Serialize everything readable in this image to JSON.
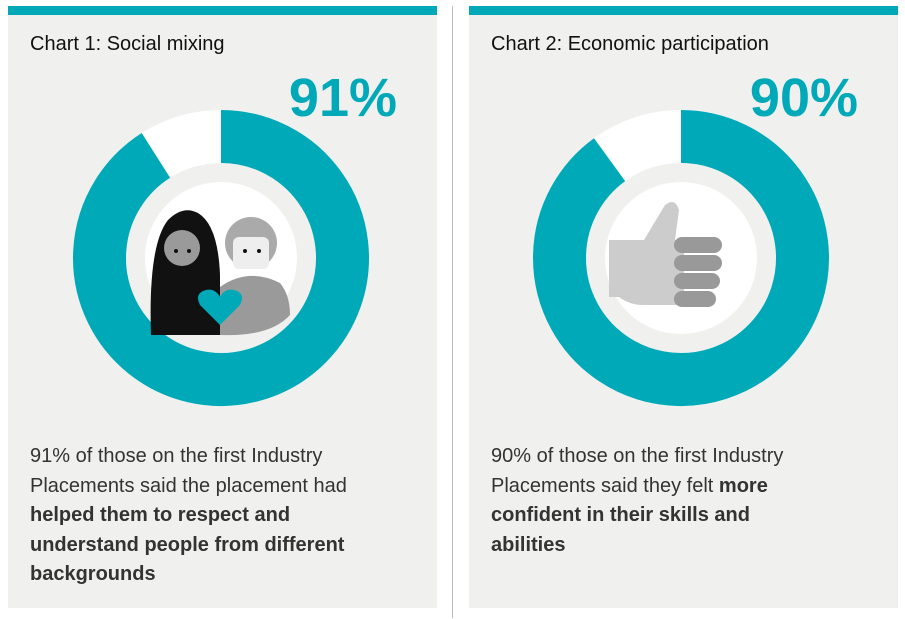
{
  "chart_data": [
    {
      "type": "donut",
      "title": "Chart 1: Social mixing",
      "values": [
        91
      ],
      "value_labels": [
        "91%"
      ],
      "ylim": [
        0,
        100
      ],
      "color": "#00a9b7",
      "caption": "91% of those on the first Industry Placements said the placement had",
      "caption_bold": "helped them to respect and understand people from different backgrounds"
    },
    {
      "type": "donut",
      "title": "Chart 2: Economic participation",
      "values": [
        90
      ],
      "value_labels": [
        "90%"
      ],
      "ylim": [
        0,
        100
      ],
      "color": "#00a9b7",
      "caption": "90% of those on the first Industry Placements said they felt",
      "caption_bold": "more confident in their skills and abilities"
    }
  ]
}
